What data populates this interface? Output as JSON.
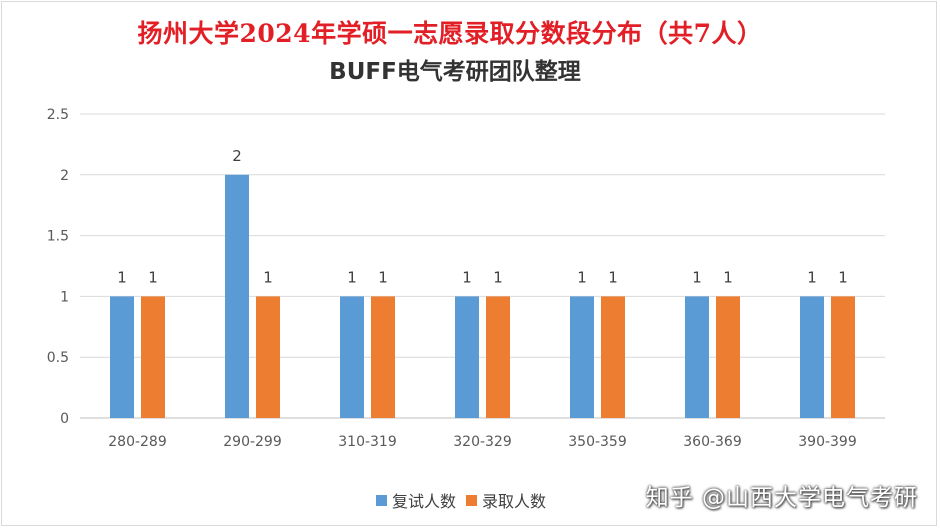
{
  "chart_data": {
    "type": "bar",
    "title": "扬州大学2024年学硕一志愿录取分数段分布（共7人）",
    "subtitle": "BUFF电气考研团队整理",
    "categories": [
      "280-289",
      "290-299",
      "310-319",
      "320-329",
      "350-359",
      "360-369",
      "390-399"
    ],
    "series": [
      {
        "name": "复试人数",
        "values": [
          1,
          2,
          1,
          1,
          1,
          1,
          1
        ],
        "color": "#5b9bd5"
      },
      {
        "name": "录取人数",
        "values": [
          1,
          1,
          1,
          1,
          1,
          1,
          1
        ],
        "color": "#ed7d31"
      }
    ],
    "ylim": [
      0,
      2.5
    ],
    "yticks": [
      "0",
      "0.5",
      "1",
      "1.5",
      "2",
      "2.5"
    ],
    "grid": true,
    "legend": "bottom"
  },
  "watermark": "知乎 @山西大学电气考研"
}
